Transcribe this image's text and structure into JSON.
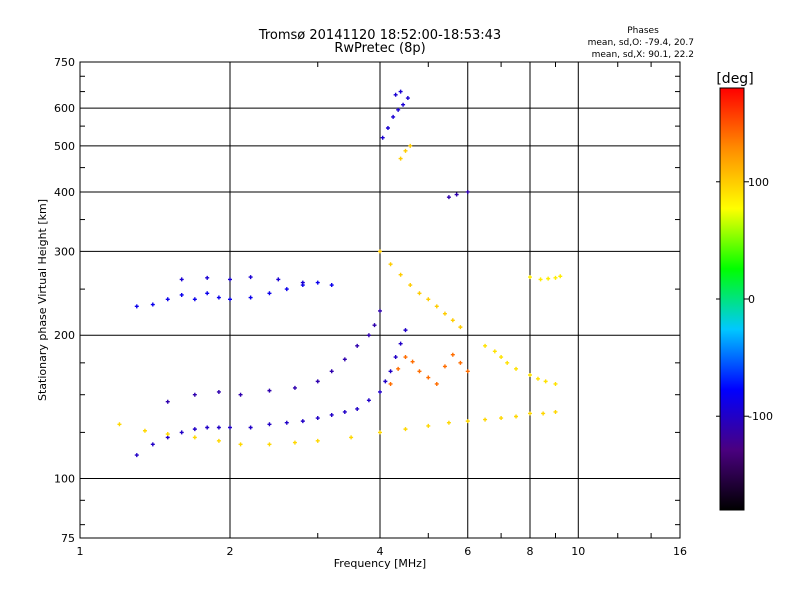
{
  "chart_data": {
    "type": "scatter",
    "title": "Tromsø 20141120 18:52:00-18:53:43",
    "subtitle": "RwPretec (8p)",
    "xlabel": "Frequency [MHz]",
    "ylabel": "Stationary phase Virtual Height [km]",
    "x_scale": "log",
    "y_scale": "log",
    "xlim": [
      1,
      16
    ],
    "ylim": [
      75,
      750
    ],
    "x_ticks": [
      1,
      2,
      4,
      6,
      8,
      10,
      16
    ],
    "y_ticks": [
      75,
      100,
      200,
      300,
      400,
      500,
      600,
      750
    ],
    "grid": true,
    "phase_info": {
      "heading": "Phases",
      "line_o": "mean, sd,O: -79.4, 20.7",
      "line_x": "mean, sd,X:  90.1, 22.2"
    },
    "colorbar": {
      "label": "[deg]",
      "range": [
        -180,
        180
      ],
      "ticks": [
        100,
        0,
        -100
      ],
      "palette": [
        "#000000",
        "#4a0080",
        "#0000ff",
        "#00c8ff",
        "#00ff00",
        "#ffff00",
        "#ff8c00",
        "#ff0000"
      ]
    },
    "series": [
      {
        "points": [
          [
            1.3,
            112
          ],
          [
            1.4,
            118
          ],
          [
            1.5,
            122
          ],
          [
            1.6,
            125
          ],
          [
            1.7,
            127
          ],
          [
            1.8,
            128
          ],
          [
            1.9,
            128
          ],
          [
            2.0,
            128
          ],
          [
            2.2,
            128
          ],
          [
            2.4,
            130
          ],
          [
            2.6,
            131
          ],
          [
            2.8,
            132
          ],
          [
            3.0,
            134
          ],
          [
            3.2,
            136
          ],
          [
            3.4,
            138
          ],
          [
            3.6,
            140
          ],
          [
            3.8,
            146
          ],
          [
            4.0,
            152
          ],
          [
            4.1,
            160
          ],
          [
            4.2,
            168
          ],
          [
            4.3,
            180
          ],
          [
            4.4,
            192
          ],
          [
            4.5,
            205
          ]
        ],
        "phase": -100
      },
      {
        "points": [
          [
            1.5,
            145
          ],
          [
            1.7,
            150
          ],
          [
            1.9,
            152
          ],
          [
            2.1,
            150
          ],
          [
            2.4,
            153
          ],
          [
            2.7,
            155
          ],
          [
            3.0,
            160
          ],
          [
            3.2,
            168
          ],
          [
            3.4,
            178
          ],
          [
            3.6,
            190
          ],
          [
            3.8,
            200
          ],
          [
            3.9,
            210
          ],
          [
            4.0,
            225
          ]
        ],
        "phase": -110
      },
      {
        "points": [
          [
            1.3,
            230
          ],
          [
            1.4,
            232
          ],
          [
            1.5,
            238
          ],
          [
            1.6,
            243
          ],
          [
            1.7,
            238
          ],
          [
            1.8,
            245
          ],
          [
            1.9,
            240
          ],
          [
            2.0,
            238
          ],
          [
            2.2,
            240
          ],
          [
            2.4,
            245
          ],
          [
            2.6,
            250
          ],
          [
            2.8,
            255
          ],
          [
            3.0,
            258
          ],
          [
            3.2,
            255
          ]
        ],
        "phase": -85
      },
      {
        "points": [
          [
            1.6,
            262
          ],
          [
            1.8,
            264
          ],
          [
            2.0,
            262
          ],
          [
            2.2,
            265
          ],
          [
            2.5,
            262
          ],
          [
            2.8,
            258
          ]
        ],
        "phase": -95
      },
      {
        "points": [
          [
            1.2,
            130
          ],
          [
            1.35,
            126
          ],
          [
            1.5,
            124
          ],
          [
            1.7,
            122
          ],
          [
            1.9,
            120
          ],
          [
            2.1,
            118
          ],
          [
            2.4,
            118
          ],
          [
            2.7,
            119
          ],
          [
            3.0,
            120
          ],
          [
            3.5,
            122
          ],
          [
            4.0,
            125
          ],
          [
            4.5,
            127
          ],
          [
            5.0,
            129
          ],
          [
            5.5,
            131
          ],
          [
            6.0,
            132
          ],
          [
            6.5,
            133
          ],
          [
            7.0,
            134
          ],
          [
            7.5,
            135
          ],
          [
            8.0,
            137
          ],
          [
            8.5,
            137
          ],
          [
            9.0,
            138
          ]
        ],
        "phase": 95
      },
      {
        "points": [
          [
            4.2,
            158
          ],
          [
            4.35,
            170
          ],
          [
            4.5,
            180
          ],
          [
            4.65,
            176
          ],
          [
            4.8,
            168
          ],
          [
            5.0,
            163
          ],
          [
            5.2,
            158
          ],
          [
            5.4,
            172
          ],
          [
            5.6,
            182
          ],
          [
            5.8,
            175
          ],
          [
            6.0,
            168
          ]
        ],
        "phase": 140
      },
      {
        "points": [
          [
            4.0,
            300
          ],
          [
            4.2,
            282
          ],
          [
            4.4,
            268
          ],
          [
            4.6,
            255
          ],
          [
            4.8,
            245
          ],
          [
            5.0,
            238
          ],
          [
            5.2,
            230
          ],
          [
            5.4,
            222
          ],
          [
            5.6,
            215
          ],
          [
            5.8,
            208
          ]
        ],
        "phase": 100
      },
      {
        "points": [
          [
            6.5,
            190
          ],
          [
            6.8,
            185
          ],
          [
            7.0,
            180
          ],
          [
            7.2,
            175
          ],
          [
            7.5,
            170
          ],
          [
            8.0,
            165
          ],
          [
            8.3,
            162
          ],
          [
            8.6,
            160
          ],
          [
            9.0,
            158
          ]
        ],
        "phase": 90
      },
      {
        "points": [
          [
            8.0,
            265
          ],
          [
            8.4,
            262
          ],
          [
            8.7,
            263
          ],
          [
            9.0,
            264
          ],
          [
            9.2,
            266
          ]
        ],
        "phase": 85
      },
      {
        "points": [
          [
            4.05,
            520
          ],
          [
            4.15,
            545
          ],
          [
            4.25,
            575
          ],
          [
            4.35,
            595
          ],
          [
            4.45,
            610
          ],
          [
            4.55,
            630
          ],
          [
            4.3,
            640
          ],
          [
            4.4,
            650
          ]
        ],
        "phase": -95
      },
      {
        "points": [
          [
            4.4,
            470
          ],
          [
            4.5,
            488
          ],
          [
            4.6,
            500
          ]
        ],
        "phase": 100
      },
      {
        "points": [
          [
            5.5,
            390
          ],
          [
            5.7,
            395
          ],
          [
            6.0,
            400
          ]
        ],
        "phase": -110
      }
    ]
  }
}
